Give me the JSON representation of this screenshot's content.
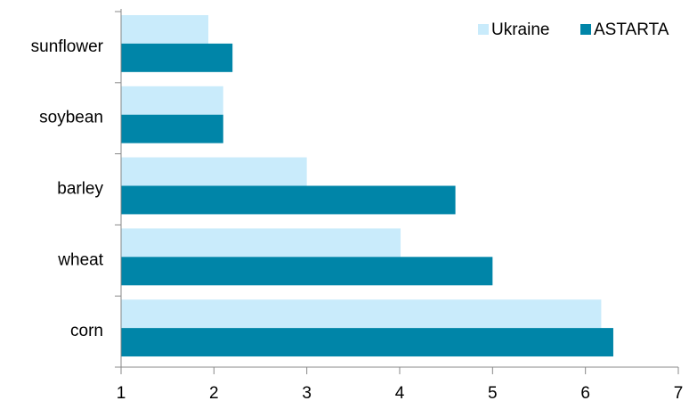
{
  "chart_data": {
    "type": "hbar",
    "categories": [
      "sunflower",
      "soybean",
      "barley",
      "wheat",
      "corn"
    ],
    "series": [
      {
        "name": "Ukraine",
        "color": "#c9ebfb",
        "values": [
          1.94,
          2.1,
          3.0,
          4.01,
          6.17
        ]
      },
      {
        "name": "ASTARTA",
        "color": "#0085a8",
        "values": [
          2.2,
          2.1,
          4.6,
          5.0,
          6.3
        ]
      }
    ],
    "xlim": [
      1,
      7
    ],
    "xticks": [
      1,
      2,
      3,
      4,
      5,
      6,
      7
    ],
    "legend": "top-right"
  }
}
